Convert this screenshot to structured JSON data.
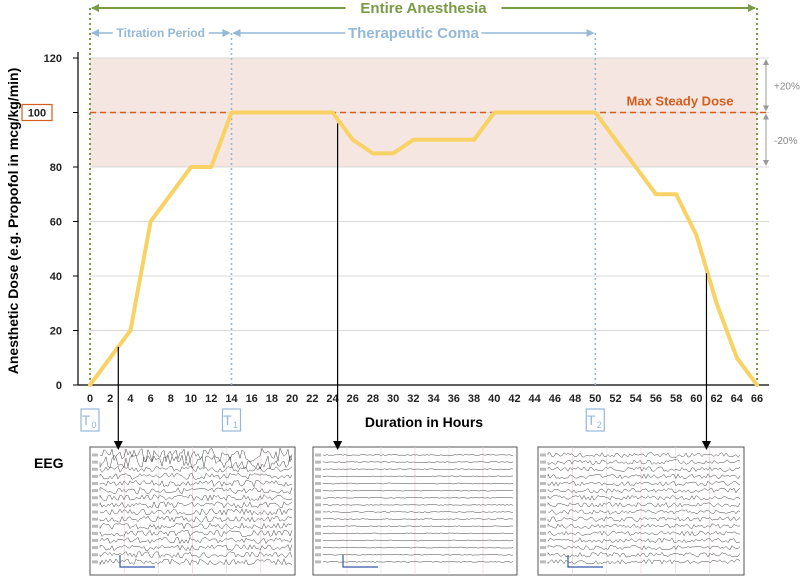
{
  "chart_data": {
    "type": "line",
    "ylabel": "Anesthetic Dose (e.g. Propofol in mcg/kg/min)",
    "xlabel": "Duration in Hours",
    "xlim": [
      0,
      66
    ],
    "ylim": [
      0,
      120
    ],
    "x_ticks": [
      0,
      2,
      4,
      6,
      8,
      10,
      12,
      14,
      16,
      18,
      20,
      22,
      24,
      26,
      28,
      30,
      32,
      34,
      36,
      38,
      40,
      42,
      44,
      46,
      48,
      50,
      52,
      54,
      56,
      58,
      60,
      62,
      64,
      66
    ],
    "y_ticks": [
      0,
      20,
      40,
      60,
      80,
      100,
      120
    ],
    "grid": true,
    "series": [
      {
        "color": "#f8d264",
        "x": [
          0,
          4,
          6,
          10,
          12,
          14,
          24,
          26,
          28,
          30,
          32,
          34,
          36,
          38,
          40,
          42,
          44,
          46,
          48,
          50,
          52,
          54,
          56,
          58,
          60,
          62,
          64,
          66
        ],
        "y": [
          0,
          20,
          60,
          80,
          80,
          100,
          100,
          90,
          85,
          85,
          90,
          90,
          90,
          90,
          100,
          100,
          100,
          100,
          100,
          100,
          90,
          80,
          70,
          70,
          55,
          30,
          10,
          0
        ]
      }
    ],
    "max_steady_dose": {
      "label": "Max Steady Dose",
      "value": 100,
      "value_label": "100",
      "color": "#d35f1f"
    },
    "band": {
      "lower": 80,
      "upper": 120,
      "plus_label": "+20%",
      "minus_label": "-20%",
      "color": "#f6e6e1"
    },
    "periods": {
      "entire": {
        "label": "Entire Anesthesia",
        "start": 0,
        "end": 66,
        "color": "#7a9a45"
      },
      "titration": {
        "label": "Titration Period",
        "start": 0,
        "end": 14,
        "color": "#93b8d8"
      },
      "coma": {
        "label": "Therapeutic Coma",
        "start": 14,
        "end": 50,
        "color": "#93b8d8"
      }
    },
    "time_markers": [
      {
        "label": "T",
        "sub": "0",
        "x": 0
      },
      {
        "label": "T",
        "sub": "1",
        "x": 14
      },
      {
        "label": "T",
        "sub": "2",
        "x": 50
      }
    ],
    "eeg_label": "EEG",
    "eeg_pointers": [
      {
        "x": 2.8,
        "y": 14
      },
      {
        "x": 24.5,
        "y": 96
      },
      {
        "x": 61,
        "y": 41
      }
    ]
  }
}
